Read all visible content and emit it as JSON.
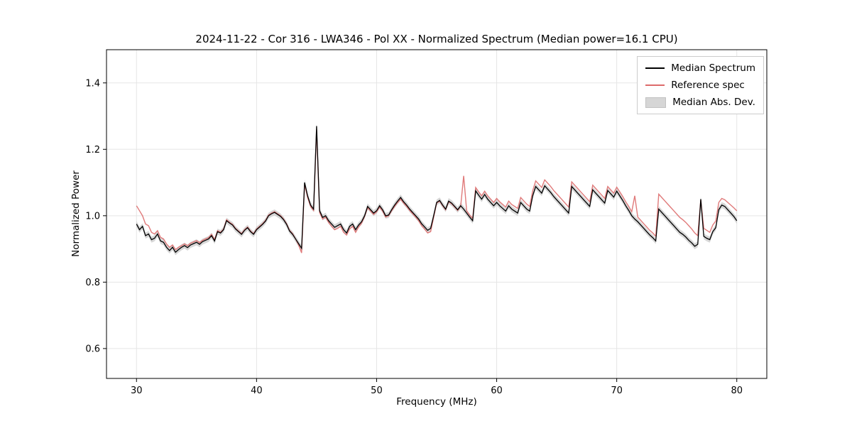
{
  "chart_data": {
    "type": "line",
    "title": "2024-11-22 - Cor 316 - LWA346 - Pol XX - Normalized Spectrum (Median power=16.1 CPU)",
    "xlabel": "Frequency (MHz)",
    "ylabel": "Normalized Power",
    "xlim": [
      27.5,
      82.5
    ],
    "ylim": [
      0.51,
      1.5
    ],
    "grid": true,
    "legend_position": "upper right",
    "xticks": {
      "values": [
        30,
        40,
        50,
        60,
        70,
        80
      ],
      "labels": [
        "30",
        "40",
        "50",
        "60",
        "70",
        "80"
      ]
    },
    "yticks": {
      "values": [
        0.6,
        0.8,
        1.0,
        1.2,
        1.4
      ],
      "labels": [
        "0.6",
        "0.8",
        "1.0",
        "1.2",
        "1.4"
      ]
    },
    "x_start": 30.0,
    "x_step": 0.25,
    "mad_halfwidth": 0.009,
    "colors": {
      "grid": "#e5e5e5",
      "spine": "#000000",
      "band": "#bdbdbd",
      "tick": "#000000"
    },
    "series": [
      {
        "name": "Median Spectrum",
        "color": "#000000",
        "values": [
          0.975,
          0.958,
          0.968,
          0.94,
          0.945,
          0.928,
          0.932,
          0.945,
          0.924,
          0.92,
          0.905,
          0.895,
          0.905,
          0.89,
          0.898,
          0.905,
          0.91,
          0.904,
          0.912,
          0.916,
          0.92,
          0.914,
          0.922,
          0.926,
          0.93,
          0.94,
          0.924,
          0.952,
          0.948,
          0.958,
          0.985,
          0.978,
          0.972,
          0.96,
          0.952,
          0.944,
          0.956,
          0.964,
          0.952,
          0.944,
          0.958,
          0.966,
          0.974,
          0.984,
          1.0,
          1.006,
          1.01,
          1.004,
          0.998,
          0.988,
          0.974,
          0.954,
          0.944,
          0.93,
          0.916,
          0.902,
          1.1,
          1.06,
          1.032,
          1.02,
          1.27,
          1.015,
          0.995,
          1.0,
          0.985,
          0.975,
          0.965,
          0.97,
          0.975,
          0.958,
          0.948,
          0.968,
          0.975,
          0.958,
          0.972,
          0.982,
          1.0,
          1.028,
          1.018,
          1.008,
          1.015,
          1.03,
          1.018,
          1.0,
          1.002,
          1.018,
          1.032,
          1.044,
          1.055,
          1.042,
          1.032,
          1.02,
          1.01,
          1.0,
          0.99,
          0.976,
          0.966,
          0.956,
          0.962,
          1.0,
          1.04,
          1.046,
          1.032,
          1.02,
          1.044,
          1.038,
          1.028,
          1.018,
          1.03,
          1.02,
          1.008,
          0.996,
          0.985,
          1.075,
          1.062,
          1.05,
          1.064,
          1.05,
          1.04,
          1.03,
          1.04,
          1.03,
          1.022,
          1.014,
          1.03,
          1.02,
          1.014,
          1.008,
          1.04,
          1.03,
          1.02,
          1.014,
          1.06,
          1.088,
          1.078,
          1.068,
          1.09,
          1.08,
          1.07,
          1.058,
          1.048,
          1.038,
          1.028,
          1.018,
          1.008,
          1.088,
          1.078,
          1.068,
          1.058,
          1.048,
          1.038,
          1.028,
          1.078,
          1.068,
          1.058,
          1.048,
          1.038,
          1.076,
          1.066,
          1.056,
          1.074,
          1.06,
          1.046,
          1.03,
          1.016,
          1.0,
          0.99,
          0.982,
          0.972,
          0.962,
          0.952,
          0.942,
          0.934,
          0.924,
          1.02,
          1.01,
          1.0,
          0.99,
          0.98,
          0.97,
          0.96,
          0.95,
          0.944,
          0.936,
          0.926,
          0.918,
          0.908,
          0.914,
          1.05,
          0.938,
          0.932,
          0.928,
          0.952,
          0.964,
          1.018,
          1.032,
          1.028,
          1.018,
          1.008,
          0.998,
          0.985
        ]
      },
      {
        "name": "Reference spec",
        "color": "#dd6b6b",
        "values": [
          1.03,
          1.015,
          1.0,
          0.975,
          0.97,
          0.95,
          0.945,
          0.955,
          0.935,
          0.93,
          0.915,
          0.905,
          0.912,
          0.898,
          0.905,
          0.91,
          0.915,
          0.91,
          0.917,
          0.921,
          0.925,
          0.919,
          0.926,
          0.93,
          0.934,
          0.944,
          0.928,
          0.955,
          0.95,
          0.96,
          0.988,
          0.98,
          0.974,
          0.962,
          0.954,
          0.946,
          0.958,
          0.966,
          0.954,
          0.946,
          0.96,
          0.968,
          0.976,
          0.986,
          1.002,
          1.008,
          1.012,
          1.006,
          1.0,
          0.99,
          0.976,
          0.956,
          0.946,
          0.93,
          0.912,
          0.888,
          1.095,
          1.055,
          1.028,
          1.016,
          1.26,
          1.01,
          0.99,
          0.996,
          0.98,
          0.968,
          0.958,
          0.962,
          0.968,
          0.95,
          0.942,
          0.96,
          0.968,
          0.95,
          0.966,
          0.978,
          0.998,
          1.024,
          1.014,
          1.004,
          1.012,
          1.026,
          1.014,
          0.996,
          1.0,
          1.015,
          1.028,
          1.04,
          1.05,
          1.038,
          1.028,
          1.016,
          1.006,
          0.996,
          0.985,
          0.97,
          0.96,
          0.948,
          0.952,
          0.995,
          1.038,
          1.044,
          1.03,
          1.018,
          1.042,
          1.036,
          1.026,
          1.016,
          1.028,
          1.12,
          1.015,
          1.002,
          0.992,
          1.085,
          1.072,
          1.06,
          1.074,
          1.06,
          1.05,
          1.04,
          1.052,
          1.042,
          1.034,
          1.026,
          1.044,
          1.034,
          1.028,
          1.022,
          1.055,
          1.045,
          1.035,
          1.028,
          1.075,
          1.105,
          1.095,
          1.085,
          1.108,
          1.098,
          1.088,
          1.076,
          1.066,
          1.056,
          1.046,
          1.036,
          1.026,
          1.102,
          1.092,
          1.082,
          1.072,
          1.062,
          1.052,
          1.042,
          1.092,
          1.082,
          1.072,
          1.062,
          1.052,
          1.088,
          1.078,
          1.068,
          1.086,
          1.072,
          1.058,
          1.042,
          1.028,
          1.012,
          1.06,
          0.996,
          0.986,
          0.976,
          0.966,
          0.956,
          0.948,
          0.938,
          1.065,
          1.055,
          1.045,
          1.035,
          1.025,
          1.015,
          1.005,
          0.995,
          0.988,
          0.98,
          0.97,
          0.96,
          0.948,
          0.94,
          1.048,
          0.962,
          0.956,
          0.95,
          0.972,
          0.984,
          1.04,
          1.052,
          1.048,
          1.04,
          1.032,
          1.024,
          1.015
        ]
      },
      {
        "name": "Median Abs. Dev.",
        "color": "#d6d6d6",
        "kind": "band"
      }
    ]
  }
}
